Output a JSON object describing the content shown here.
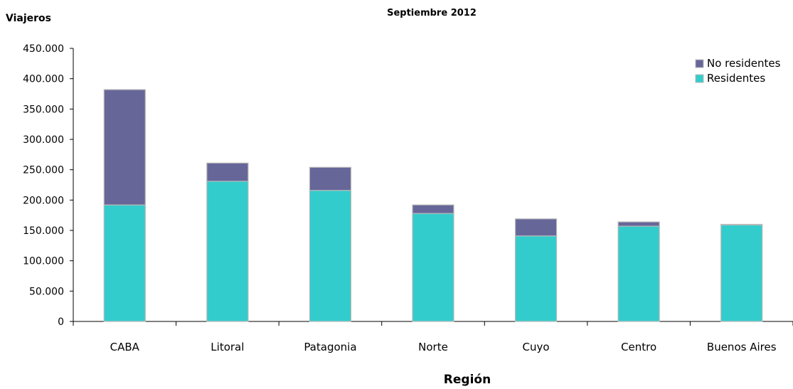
{
  "chart_data": {
    "type": "bar",
    "stacked": true,
    "title": "Septiembre 2012",
    "ylabel": "Viajeros",
    "xlabel": "Región",
    "categories": [
      "CABA",
      "Litoral",
      "Patagonia",
      "Norte",
      "Cuyo",
      "Centro",
      "Buenos Aires"
    ],
    "series": [
      {
        "name": "Residentes",
        "color": "#33CCCC",
        "values": [
          192000,
          231000,
          216000,
          178000,
          141000,
          157000,
          159000
        ]
      },
      {
        "name": "No residentes",
        "color": "#666699",
        "values": [
          190000,
          30000,
          38000,
          14000,
          28000,
          7000,
          1000
        ]
      }
    ],
    "ylim": [
      0,
      450000
    ],
    "yticks": [
      0,
      50000,
      100000,
      150000,
      200000,
      250000,
      300000,
      350000,
      400000,
      450000
    ],
    "ytick_labels": [
      "0",
      "50.000",
      "100.000",
      "150.000",
      "200.000",
      "250.000",
      "300.000",
      "350.000",
      "400.000",
      "450.000"
    ],
    "legend_order": [
      "No residentes",
      "Residentes"
    ],
    "legend_position": "top-right",
    "grid": false
  }
}
